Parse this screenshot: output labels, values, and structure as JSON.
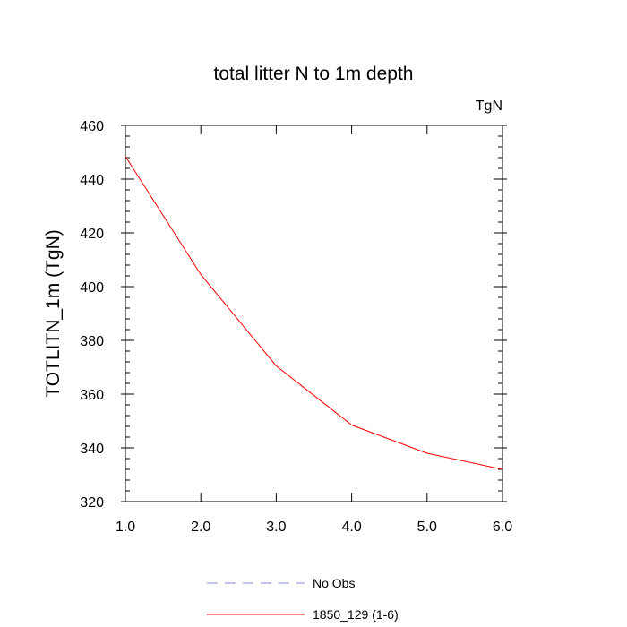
{
  "chart_data": {
    "type": "line",
    "title": "total litter N to 1m depth",
    "units_label": "TgN",
    "xlabel": "",
    "ylabel": "TOTLITN_1m  (TgN)",
    "xlim": [
      1.0,
      6.0
    ],
    "ylim": [
      320,
      460
    ],
    "xticks": [
      1.0,
      2.0,
      3.0,
      4.0,
      5.0,
      6.0
    ],
    "xtick_labels": [
      "1.0",
      "2.0",
      "3.0",
      "4.0",
      "5.0",
      "6.0"
    ],
    "yticks": [
      320,
      340,
      360,
      380,
      400,
      420,
      440,
      460
    ],
    "ytick_labels": [
      "320",
      "340",
      "360",
      "380",
      "400",
      "420",
      "440",
      "460"
    ],
    "grid": false,
    "legend_position": "bottom",
    "series": [
      {
        "name": "1850_129 (1-6)",
        "color": "#ff0000",
        "style": "solid",
        "x": [
          1.0,
          2.0,
          3.0,
          4.0,
          5.0,
          6.0
        ],
        "y": [
          448.5,
          404.5,
          370.5,
          348.5,
          338.0,
          332.0
        ]
      }
    ],
    "legend": [
      {
        "label": "No Obs",
        "color": "#8a8ae0",
        "style": "dashed"
      },
      {
        "label": "1850_129 (1-6)",
        "color": "#ff0000",
        "style": "solid"
      }
    ]
  }
}
